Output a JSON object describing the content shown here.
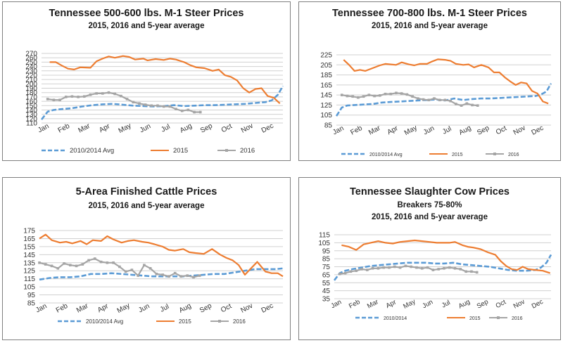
{
  "colors": {
    "avg": "#5b9bd5",
    "y2015": "#ed7d31",
    "y2016": "#a5a5a5",
    "grid": "#d0d0d0"
  },
  "chart_data": [
    {
      "type": "line",
      "title": "Tennessee 500-600 lbs. M-1 Steer Prices",
      "subtitle": "2015, 2016 and 5-year average",
      "subtitle2": "",
      "yticks": [
        110,
        120,
        130,
        140,
        150,
        160,
        170,
        180,
        190,
        200,
        210,
        220,
        230,
        240,
        250,
        260,
        270
      ],
      "ylim": [
        110,
        270
      ],
      "x_labels": [
        "Jan",
        "Feb",
        "Mar",
        "Apr",
        "May",
        "Jun",
        "Jul",
        "Aug",
        "Sep",
        "Oct",
        "Nov",
        "Dec"
      ],
      "series": [
        {
          "name": "2010/2014 Avg",
          "key": "avg",
          "x": [
            0,
            0.3,
            0.6,
            1,
            1.5,
            2,
            2.5,
            3,
            3.5,
            4,
            4.5,
            5,
            5.5,
            6,
            6.5,
            7,
            7.5,
            8,
            8.5,
            9,
            9.5,
            10,
            10.5,
            11,
            11.3,
            11.6,
            11.85
          ],
          "y": [
            118,
            136,
            140,
            142,
            144,
            148,
            151,
            153,
            154,
            152,
            150,
            149,
            148,
            149,
            151,
            149,
            150,
            151,
            151,
            152,
            153,
            154,
            156,
            158,
            162,
            175,
            195
          ]
        },
        {
          "name": "2015",
          "key": "y2015",
          "x": [
            0.4,
            0.7,
            1,
            1.3,
            1.6,
            1.9,
            2.4,
            2.7,
            3,
            3.3,
            3.6,
            4,
            4.3,
            4.6,
            5,
            5.2,
            5.6,
            6,
            6.3,
            6.6,
            7,
            7.3,
            7.6,
            8,
            8.4,
            8.7,
            9,
            9.3,
            9.6,
            9.9,
            10.2,
            10.5,
            10.8,
            11.1,
            11.4,
            11.7
          ],
          "y": [
            250,
            250,
            242,
            235,
            233,
            238,
            237,
            252,
            258,
            263,
            260,
            264,
            262,
            256,
            258,
            254,
            257,
            255,
            258,
            256,
            250,
            243,
            238,
            236,
            230,
            233,
            220,
            216,
            208,
            190,
            180,
            188,
            190,
            172,
            168,
            155
          ]
        },
        {
          "name": "2016",
          "key": "y2016",
          "x": [
            0.3,
            0.6,
            0.9,
            1.2,
            1.5,
            1.8,
            2.1,
            2.4,
            2.7,
            3,
            3.3,
            3.6,
            3.9,
            4.2,
            4.5,
            4.8,
            5.1,
            5.4,
            5.7,
            6,
            6.3,
            6.6,
            6.9,
            7.2,
            7.5,
            7.8
          ],
          "y": [
            165,
            163,
            163,
            170,
            171,
            170,
            171,
            175,
            178,
            178,
            180,
            177,
            172,
            165,
            158,
            155,
            152,
            150,
            150,
            148,
            148,
            142,
            138,
            140,
            135,
            135
          ]
        }
      ],
      "legend": [
        "2010/2014 Avg",
        "2015",
        "2016"
      ]
    },
    {
      "type": "line",
      "title": "Tennessee 700-800 lbs. M-1 Steer Prices",
      "subtitle": "2015, 2016 and 5-year average",
      "subtitle2": "",
      "yticks": [
        85,
        105,
        125,
        145,
        165,
        185,
        205,
        225
      ],
      "ylim": [
        85,
        225
      ],
      "x_labels": [
        "Jan",
        "Feb",
        "Mar",
        "Apr",
        "May",
        "Jun",
        "Jul",
        "Aug",
        "Sep",
        "Oct",
        "Nov",
        "Dec"
      ],
      "series": [
        {
          "name": "2010/2014 Avg",
          "key": "avg",
          "x": [
            0,
            0.3,
            0.6,
            1,
            1.5,
            2,
            2.5,
            3,
            3.5,
            4,
            4.5,
            5,
            5.5,
            6,
            6.5,
            7,
            7.5,
            8,
            8.5,
            9,
            9.5,
            10,
            10.5,
            11,
            11.3,
            11.6,
            11.85
          ],
          "y": [
            103,
            120,
            124,
            125,
            126,
            127,
            130,
            131,
            132,
            133,
            134,
            135,
            136,
            134,
            138,
            135,
            137,
            138,
            138,
            139,
            140,
            141,
            142,
            143,
            146,
            152,
            168
          ]
        },
        {
          "name": "2015",
          "key": "y2015",
          "x": [
            0.4,
            0.7,
            1,
            1.3,
            1.6,
            2.4,
            2.7,
            3,
            3.3,
            3.6,
            4,
            4.3,
            4.6,
            5,
            5.3,
            5.6,
            6,
            6.3,
            6.6,
            7,
            7.3,
            7.6,
            8,
            8.4,
            8.7,
            9,
            9.3,
            9.6,
            9.9,
            10.2,
            10.5,
            10.8,
            11.1,
            11.4,
            11.7
          ],
          "y": [
            215,
            205,
            193,
            195,
            193,
            204,
            207,
            206,
            205,
            210,
            206,
            204,
            207,
            207,
            212,
            216,
            215,
            213,
            207,
            205,
            206,
            200,
            205,
            200,
            190,
            190,
            180,
            172,
            165,
            170,
            168,
            153,
            148,
            132,
            128
          ]
        },
        {
          "name": "2016",
          "key": "y2016",
          "x": [
            0.3,
            0.6,
            0.9,
            1.2,
            1.5,
            1.8,
            2.1,
            2.4,
            2.7,
            3,
            3.3,
            3.6,
            3.9,
            4.2,
            4.5,
            4.8,
            5.1,
            5.4,
            5.7,
            6,
            6.3,
            6.6,
            6.9,
            7.2,
            7.5,
            7.8
          ],
          "y": [
            145,
            143,
            142,
            140,
            142,
            145,
            143,
            144,
            147,
            147,
            149,
            148,
            146,
            142,
            138,
            136,
            135,
            138,
            135,
            135,
            133,
            127,
            124,
            128,
            125,
            124
          ]
        }
      ],
      "legend": [
        "2010/2014 Avg",
        "2015",
        "2016"
      ]
    },
    {
      "type": "line",
      "title": "5-Area Finished Cattle Prices",
      "subtitle": "2015, 2016 and 5-year average",
      "subtitle2": "",
      "yticks": [
        85,
        95,
        105,
        115,
        125,
        135,
        145,
        155,
        165,
        175
      ],
      "ylim": [
        85,
        175
      ],
      "x_labels": [
        "Jan",
        "Feb",
        "Mar",
        "Apr",
        "May",
        "Jun",
        "Jul",
        "Aug",
        "Sep",
        "Oct",
        "Nov",
        "Dec"
      ],
      "series": [
        {
          "name": "2010/2014 Avg",
          "key": "avg",
          "x": [
            0,
            0.5,
            1,
            1.5,
            2,
            2.5,
            3,
            3.5,
            4,
            4.5,
            5,
            5.5,
            6,
            6.5,
            7,
            7.5,
            8,
            8.5,
            9,
            9.5,
            10,
            10.5,
            11,
            11.5,
            11.85
          ],
          "y": [
            114,
            116,
            117,
            117,
            118,
            121,
            121,
            122,
            121,
            120,
            119,
            118,
            118,
            118,
            118,
            119,
            120,
            121,
            121,
            123,
            125,
            127,
            127,
            127,
            128
          ]
        },
        {
          "name": "2015",
          "key": "y2015",
          "x": [
            0,
            0.3,
            0.6,
            1,
            1.3,
            1.6,
            2,
            2.3,
            2.6,
            3,
            3.3,
            3.6,
            4,
            4.3,
            4.6,
            5,
            5.3,
            5.6,
            6,
            6.3,
            6.6,
            7,
            7.3,
            7.6,
            8,
            8.4,
            8.8,
            9.1,
            9.4,
            9.7,
            10,
            10.3,
            10.6,
            11,
            11.3,
            11.6,
            11.85
          ],
          "y": [
            165,
            170,
            163,
            160,
            161,
            159,
            162,
            158,
            163,
            162,
            168,
            164,
            160,
            162,
            163,
            161,
            160,
            158,
            155,
            151,
            150,
            152,
            148,
            147,
            146,
            152,
            145,
            141,
            138,
            132,
            120,
            128,
            136,
            124,
            122,
            122,
            118
          ]
        },
        {
          "name": "2016",
          "key": "y2016",
          "x": [
            0,
            0.3,
            0.6,
            0.9,
            1.2,
            1.5,
            1.8,
            2.1,
            2.4,
            2.7,
            3,
            3.3,
            3.6,
            3.9,
            4.2,
            4.5,
            4.8,
            5.1,
            5.4,
            5.7,
            6,
            6.3,
            6.6,
            6.9,
            7.2,
            7.5,
            7.8
          ],
          "y": [
            135,
            133,
            131,
            128,
            134,
            132,
            131,
            133,
            138,
            140,
            136,
            135,
            135,
            130,
            124,
            126,
            119,
            132,
            128,
            121,
            120,
            118,
            122,
            118,
            119,
            117,
            119
          ]
        }
      ],
      "legend": [
        "2010/2014 Avg",
        "2015",
        "2016"
      ]
    },
    {
      "type": "line",
      "title": "Tennessee Slaughter Cow Prices",
      "subtitle": "Breakers 75-80%",
      "subtitle2": "2015, 2016 and 5-year average",
      "yticks": [
        35,
        45,
        55,
        65,
        75,
        85,
        95,
        105,
        115
      ],
      "ylim": [
        35,
        115
      ],
      "x_labels": [
        "Jan",
        "Feb",
        "Mar",
        "Apr",
        "May",
        "Jun",
        "Jul",
        "Aug",
        "Sep",
        "Oct",
        "Nov",
        "Dec"
      ],
      "series": [
        {
          "name": "2010/2014",
          "key": "avg",
          "x": [
            0,
            0.3,
            0.6,
            1,
            1.5,
            2,
            2.5,
            3,
            3.5,
            4,
            4.5,
            5,
            5.5,
            6,
            6.5,
            7,
            7.5,
            8,
            8.5,
            9,
            9.5,
            10,
            10.5,
            11,
            11.3,
            11.6,
            11.85
          ],
          "y": [
            58,
            67,
            70,
            72,
            74,
            76,
            77,
            78,
            79,
            80,
            80,
            80,
            79,
            79,
            80,
            78,
            77,
            76,
            75,
            73,
            71,
            70,
            70,
            71,
            74,
            80,
            90
          ]
        },
        {
          "name": "2015",
          "key": "y2015",
          "x": [
            0.4,
            0.8,
            1.2,
            1.6,
            2.4,
            2.8,
            3.2,
            3.6,
            4,
            4.4,
            4.8,
            5.2,
            5.6,
            6,
            6.3,
            6.6,
            7,
            7.3,
            7.6,
            8,
            8.4,
            8.8,
            9.1,
            9.4,
            9.7,
            10,
            10.3,
            10.6,
            11,
            11.4,
            11.8
          ],
          "y": [
            102,
            100,
            96,
            103,
            107,
            105,
            104,
            106,
            107,
            108,
            107,
            106,
            105,
            105,
            105,
            106,
            102,
            100,
            99,
            97,
            93,
            90,
            82,
            76,
            72,
            71,
            75,
            72,
            71,
            70,
            67
          ]
        },
        {
          "name": "2016",
          "key": "y2016",
          "x": [
            0.3,
            0.6,
            0.9,
            1.2,
            1.5,
            1.8,
            2.1,
            2.4,
            2.7,
            3,
            3.3,
            3.6,
            3.9,
            4.2,
            4.5,
            4.8,
            5.1,
            5.4,
            5.7,
            6,
            6.3,
            6.6,
            6.9,
            7.2,
            7.5,
            7.8
          ],
          "y": [
            66,
            67,
            69,
            70,
            72,
            71,
            73,
            73,
            74,
            74,
            75,
            74,
            76,
            75,
            74,
            73,
            74,
            71,
            72,
            73,
            74,
            73,
            72,
            69,
            69,
            68
          ]
        }
      ],
      "legend": [
        "2010/2014",
        "2015",
        "2016"
      ]
    }
  ]
}
